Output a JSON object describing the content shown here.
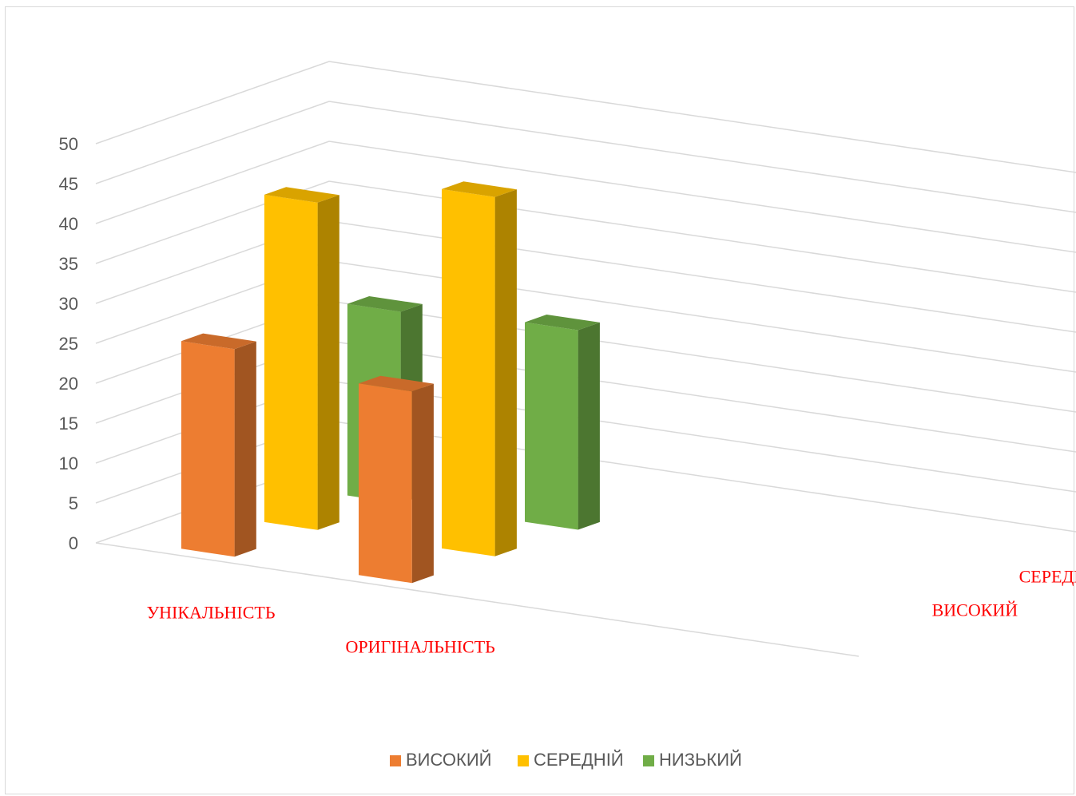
{
  "chart_data": {
    "type": "bar",
    "subtype": "3d-column",
    "title": "",
    "categories": [
      "УНІКАЛЬНІСТЬ",
      "ОРИГІНАЛЬНІСТЬ"
    ],
    "series": [
      {
        "name": "ВИСОКИЙ",
        "values": [
          26,
          24
        ],
        "color": "#ed7d31"
      },
      {
        "name": "СЕРЕДНІЙ",
        "values": [
          41,
          45
        ],
        "color": "#ffc000"
      },
      {
        "name": "НИЗЬКИЙ",
        "values": [
          24,
          25
        ],
        "color": "#70ad47"
      }
    ],
    "ylim": [
      0,
      50
    ],
    "yticks": [
      0,
      5,
      10,
      15,
      20,
      25,
      30,
      35,
      40,
      45,
      50
    ],
    "grid": true,
    "legend_position": "bottom",
    "label_color": "#ff0000"
  }
}
